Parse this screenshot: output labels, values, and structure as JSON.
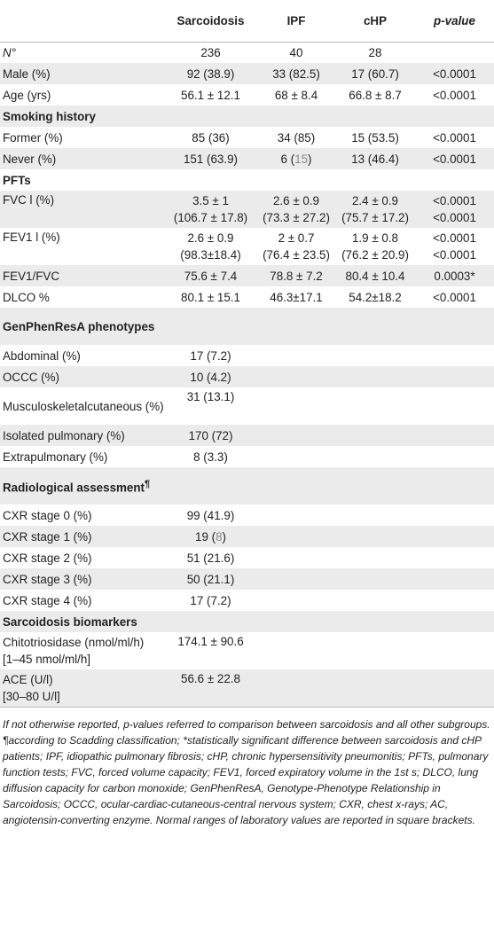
{
  "headers": {
    "col0": "",
    "sarcoidosis": "Sarcoidosis",
    "ipf": "IPF",
    "chp": "cHP",
    "p_value": "p-value"
  },
  "rows": {
    "n": {
      "label": "N°",
      "s": "236",
      "i": "40",
      "c": "28",
      "p": ""
    },
    "male": {
      "label": "Male (%)",
      "s": "92 (38.9)",
      "i": "33 (82.5)",
      "c": "17 (60.7)",
      "p": "<0.0001"
    },
    "age": {
      "label": "Age (yrs)",
      "s": "56.1 ± 12.1",
      "i": "68 ± 8.4",
      "c": "66.8 ± 8.7",
      "p": "<0.0001"
    },
    "smoking": {
      "label": "Smoking history"
    },
    "former": {
      "label": "Former (%)",
      "s": "85 (36)",
      "i": "34 (85)",
      "c": "15 (53.5)",
      "p": "<0.0001"
    },
    "never": {
      "label": "Never (%)",
      "s": "151 (63.9)",
      "i_pre": "6 (",
      "i_num": "15",
      "i_post": ")",
      "c": "13 (46.4)",
      "p": "<0.0001"
    },
    "pfts": {
      "label": "PFTs"
    },
    "fvc": {
      "label": "FVC l (%)",
      "s1": "3.5 ± 1",
      "s2": "(106.7 ± 17.8)",
      "i1": "2.6 ± 0.9",
      "i2": "(73.3 ± 27.2)",
      "c1": "2.4 ± 0.9",
      "c2": "(75.7 ± 17.2)",
      "p1": "<0.0001",
      "p2": "<0.0001"
    },
    "fev1": {
      "label": "FEV1 l (%)",
      "s1": "2.6 ± 0.9",
      "s2": "(98.3±18.4)",
      "i1": "2 ± 0.7",
      "i2": "(76.4 ± 23.5)",
      "c1": "1.9 ± 0.8",
      "c2": "(76.2 ± 20.9)",
      "p1": "<0.0001",
      "p2": "<0.0001"
    },
    "fev1fvc": {
      "label": "FEV1/FVC",
      "s": "75.6 ± 7.4",
      "i": "78.8 ± 7.2",
      "c": "80.4 ± 10.4",
      "p": "0.0003*"
    },
    "dlco": {
      "label": "DLCO %",
      "s": "80.1 ± 15.1",
      "i": "46.3±17.1",
      "c": "54.2±18.2",
      "p": "<0.0001"
    },
    "genphen": {
      "label": "GenPhenResA phenotypes"
    },
    "abdominal": {
      "label": "Abdominal (%)",
      "s": "17 (7.2)"
    },
    "occc": {
      "label": "OCCC (%)",
      "s": "10 (4.2)"
    },
    "musculo": {
      "label": "Musculoskeletalcutaneous (%)",
      "s": "31 (13.1)"
    },
    "isolated": {
      "label": "Isolated pulmonary (%)",
      "s": "170 (72)"
    },
    "extra": {
      "label": "Extrapulmonary (%)",
      "s": "8 (3.3)"
    },
    "radio": {
      "label": "Radiological assessment",
      "mark": "¶"
    },
    "cxr0": {
      "label": "CXR stage 0 (%)",
      "s": "99 (41.9)"
    },
    "cxr1": {
      "label": "CXR stage 1 (%)",
      "s_pre": "19 (",
      "s_num": "8",
      "s_post": ")"
    },
    "cxr2": {
      "label": "CXR stage 2 (%)",
      "s": "51 (21.6)"
    },
    "cxr3": {
      "label": "CXR stage 3 (%)",
      "s": "50 (21.1)"
    },
    "cxr4": {
      "label": "CXR stage 4 (%)",
      "s": "17 (7.2)"
    },
    "biomarkers": {
      "label": "Sarcoidosis biomarkers"
    },
    "chito": {
      "label1": "Chitotriosidase (nmol/ml/h)",
      "label2": "[1–45 nmol/ml/h]",
      "s": "174.1 ± 90.6"
    },
    "ace": {
      "label1": "ACE (U/l)",
      "label2": "[30–80 U/l]",
      "s": "56.6 ± 22.8"
    }
  },
  "footnote": "If not otherwise reported, p-values referred to comparison between sarcoidosis and all other subgroups. ¶according to Scadding classification; *statistically significant difference between sarcoidosis and cHP patients; IPF, idiopathic pulmonary fibrosis; cHP, chronic hypersensitivity pneumonitis; PFTs, pulmonary function tests; FVC, forced volume capacity; FEV1, forced expiratory volume in the 1st s; DLCO, lung diffusion capacity for carbon monoxide; GenPhenResA, Genotype-Phenotype Relationship in Sarcoidosis; OCCC, ocular-cardiac-cutaneous-central nervous system; CXR, chest x-rays; AC, angiotensin-converting enzyme. Normal ranges of laboratory values are reported in square brackets."
}
